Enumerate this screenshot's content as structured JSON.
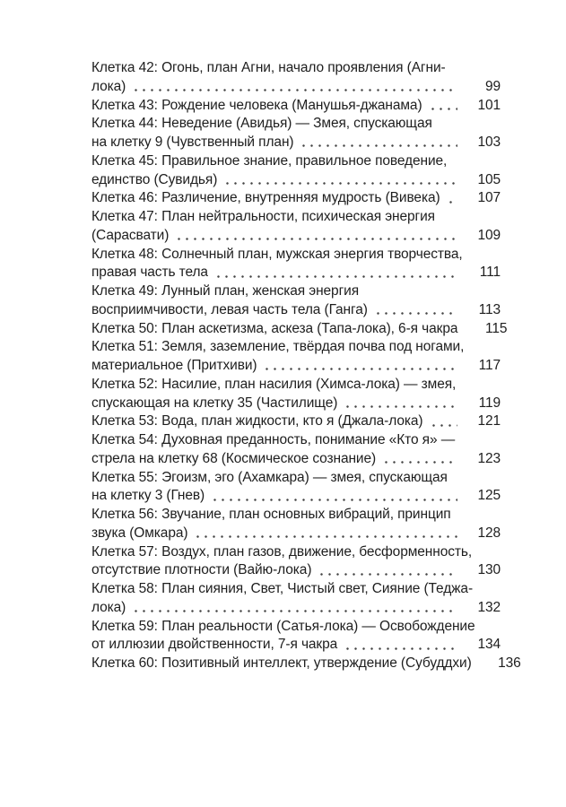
{
  "colors": {
    "background": "#ffffff",
    "text": "#1e1e1e",
    "leader_dots": "#454545"
  },
  "toc": {
    "lines": [
      {
        "text": "Клетка 42: Огонь, план Агни, начало проявления (Агни-",
        "page": ""
      },
      {
        "text": "лока)",
        "page": "99"
      },
      {
        "text": "Клетка 43: Рождение человека (Манушья-джанама)",
        "page": "101"
      },
      {
        "text": "Клетка 44: Неведение (Авидья) — Змея, спускающая",
        "page": ""
      },
      {
        "text": "на клетку 9 (Чувственный план)",
        "page": "103"
      },
      {
        "text": "Клетка 45: Правильное знание, правильное поведение,",
        "page": ""
      },
      {
        "text": "единство (Сувидья)",
        "page": "105"
      },
      {
        "text": "Клетка 46: Различение, внутренняя мудрость (Вивека)",
        "page": "107"
      },
      {
        "text": "Клетка 47: План нейтральности, психическая энергия",
        "page": ""
      },
      {
        "text": "(Сарасвати)",
        "page": "109"
      },
      {
        "text": "Клетка 48: Солнечный план, мужская энергия творчества,",
        "page": ""
      },
      {
        "text": "правая часть тела",
        "page": "111"
      },
      {
        "text": "Клетка 49: Лунный план, женская энергия",
        "page": ""
      },
      {
        "text": "восприимчивости, левая часть тела (Ганга)",
        "page": "113"
      },
      {
        "text": "Клетка 50: План аскетизма, аскеза (Тапа-лока), 6-я чакра",
        "page": "115"
      },
      {
        "text": "Клетка 51: Земля, заземление, твёрдая почва под ногами,",
        "page": ""
      },
      {
        "text": "материальное (Притхиви)",
        "page": "117"
      },
      {
        "text": "Клетка 52: Насилие, план насилия (Химса-лока) — змея,",
        "page": ""
      },
      {
        "text": "спускающая на клетку 35 (Частилище)",
        "page": "119"
      },
      {
        "text": "Клетка 53: Вода, план жидкости, кто я (Джала-лока)",
        "page": "121"
      },
      {
        "text": "Клетка 54: Духовная преданность, понимание «Кто я» —",
        "page": ""
      },
      {
        "text": "стрела на клетку 68 (Космическое сознание)",
        "page": "123"
      },
      {
        "text": "Клетка 55: Эгоизм, эго (Ахамкара) — змея, спускающая",
        "page": ""
      },
      {
        "text": "на клетку 3 (Гнев)",
        "page": "125"
      },
      {
        "text": "Клетка 56: Звучание, план основных вибраций, принцип",
        "page": ""
      },
      {
        "text": "звука (Омкара)",
        "page": "128"
      },
      {
        "text": "Клетка 57: Воздух, план газов, движение, бесформенность,",
        "page": ""
      },
      {
        "text": "отсутствие плотности (Вайю-лока)",
        "page": "130"
      },
      {
        "text": "Клетка 58: План сияния, Свет, Чистый свет, Сияние (Теджа-",
        "page": ""
      },
      {
        "text": "лока)",
        "page": "132"
      },
      {
        "text": "Клетка 59: План реальности (Сатья-лока) — Освобождение",
        "page": ""
      },
      {
        "text": "от иллюзии двойственности, 7-я чакра",
        "page": "134"
      },
      {
        "text": "Клетка 60: Позитивный интеллект, утверждение (Субуддхи)",
        "page": "136"
      }
    ]
  }
}
